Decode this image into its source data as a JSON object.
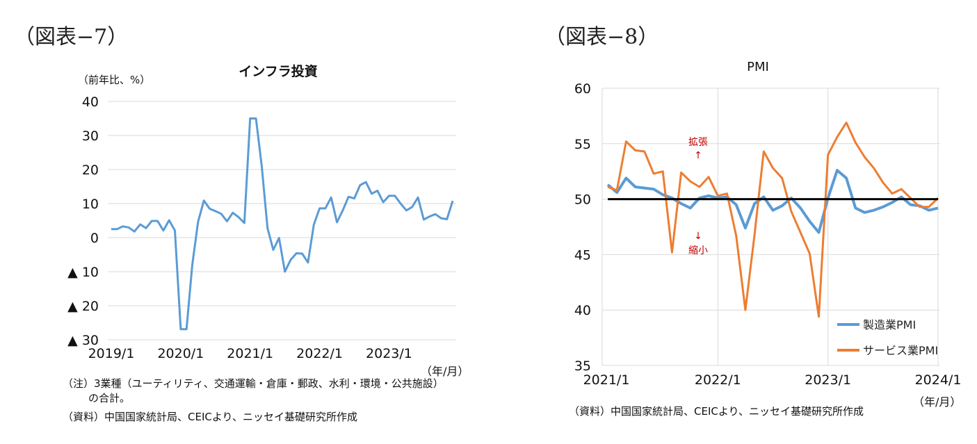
{
  "left": {
    "fig_label": "（図表−7）",
    "unit_label": "（前年比、%）",
    "x_unit": "（年/月）",
    "note_line1": "（注）3業種（ユーティリティ、交通運輸・倉庫・郵政、水利・環境・公共施設）",
    "note_line2": "の合計。",
    "source": "（資料）中国国家統計局、CEICより、ニッセイ基礎研究所作成"
  },
  "right": {
    "fig_label": "（図表−8）",
    "x_unit": "（年/月）",
    "source": "（資料）中国国家統計局、CEICより、ニッセイ基礎研究所作成",
    "annot_up_text": "拡張",
    "annot_up_arrow": "↑",
    "annot_down_arrow": "↓",
    "annot_down_text": "縮小"
  },
  "chart_data": [
    {
      "type": "line",
      "title": "インフラ投資",
      "ylabel": "（前年比、%）",
      "xlabel": "（年/月）",
      "ylim": [
        -30,
        40
      ],
      "yticks": [
        40,
        30,
        20,
        10,
        0,
        -10,
        -20,
        -30
      ],
      "ytick_labels": [
        "40",
        "30",
        "20",
        "10",
        "0",
        "▲ 10",
        "▲ 20",
        "▲ 30"
      ],
      "x_tick_labels": [
        "2019/1",
        "2020/1",
        "2021/1",
        "2022/1",
        "2023/1"
      ],
      "grid": true,
      "color": "#5b9bd5",
      "series": [
        {
          "values": [
            2.5,
            2.5,
            3.3,
            3.0,
            1.8,
            3.9,
            2.8,
            4.9,
            4.9,
            2.1,
            5.1,
            2.1,
            -26.9,
            -26.9,
            -8.0,
            4.6,
            10.9,
            8.5,
            7.8,
            7.0,
            4.8,
            7.3,
            6.0,
            4.3,
            35.0,
            35.0,
            21.0,
            2.8,
            -3.6,
            -0.1,
            -10.0,
            -6.5,
            -4.6,
            -4.7,
            -7.3,
            3.8,
            8.6,
            8.6,
            11.8,
            4.5,
            8.0,
            12.0,
            11.5,
            15.4,
            16.3,
            12.9,
            13.8,
            10.4,
            12.3,
            12.3,
            10.0,
            8.0,
            9.0,
            11.8,
            5.3,
            6.2,
            6.9,
            5.7,
            5.4,
            10.8
          ]
        }
      ]
    },
    {
      "type": "line",
      "title": "PMI",
      "xlabel": "（年/月）",
      "ylim": [
        35,
        60
      ],
      "yticks": [
        60,
        55,
        50,
        45,
        40,
        35
      ],
      "x_tick_labels": [
        "2021/1",
        "2022/1",
        "2023/1",
        "2024/1"
      ],
      "grid": true,
      "reference_line": 50,
      "legend_position": "bottom-right",
      "series": [
        {
          "name": "製造業PMI",
          "color": "#5b9bd5",
          "values": [
            51.3,
            50.6,
            51.9,
            51.1,
            51.0,
            50.9,
            50.4,
            50.1,
            49.6,
            49.2,
            50.1,
            50.3,
            50.1,
            50.2,
            49.5,
            47.4,
            49.6,
            50.2,
            49.0,
            49.4,
            50.1,
            49.2,
            48.0,
            47.0,
            50.1,
            52.6,
            51.9,
            49.2,
            48.8,
            49.0,
            49.3,
            49.7,
            50.2,
            49.5,
            49.4,
            49.0,
            49.2
          ]
        },
        {
          "name": "サービス業PMI",
          "color": "#ed7d31",
          "values": [
            51.1,
            50.8,
            55.2,
            54.4,
            54.3,
            52.3,
            52.5,
            45.2,
            52.4,
            51.6,
            51.1,
            52.0,
            50.3,
            50.5,
            46.7,
            40.0,
            46.8,
            54.3,
            52.8,
            51.9,
            48.9,
            47.0,
            45.1,
            39.4,
            54.0,
            55.6,
            56.9,
            55.1,
            53.8,
            52.8,
            51.5,
            50.5,
            50.9,
            50.1,
            49.3,
            49.3,
            50.1
          ]
        }
      ]
    }
  ]
}
